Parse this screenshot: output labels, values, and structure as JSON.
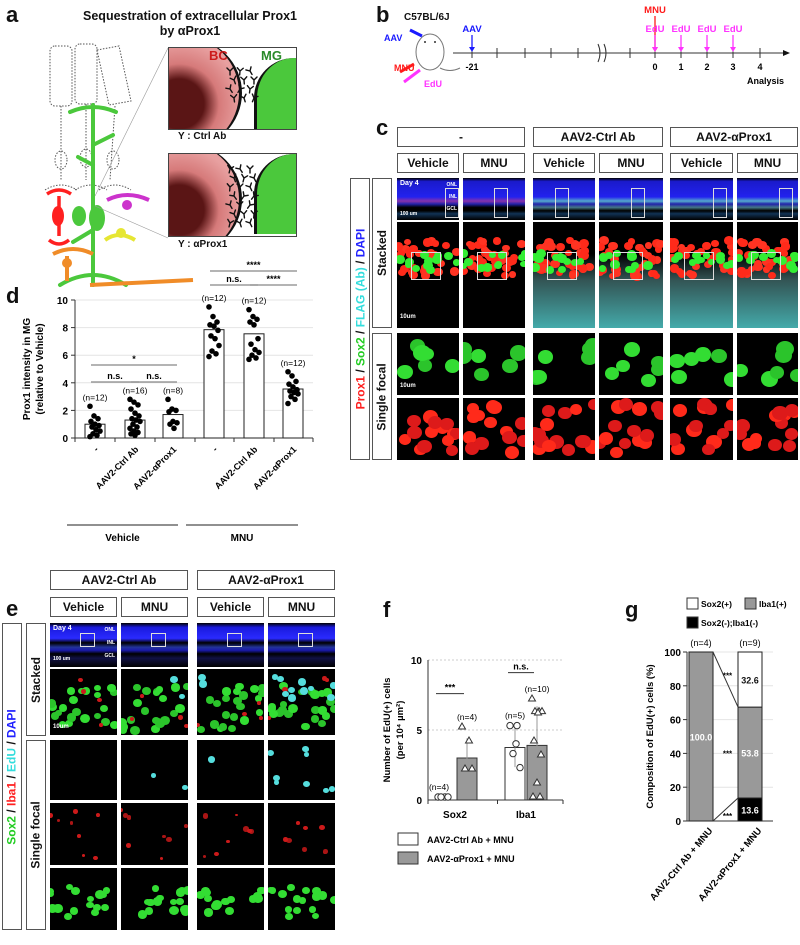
{
  "panel_a": {
    "label": "a",
    "title_line1": "Sequestration of extracellular Prox1",
    "title_line2": "by αProx1",
    "inset_labels": {
      "bc": "BC",
      "mg": "MG"
    },
    "ctrl_caption": "Y : Ctrl Ab",
    "aprox_caption": "Y : αProx1"
  },
  "panel_b": {
    "label": "b",
    "strain": "C57BL/6J",
    "injections": {
      "aav": "AAV",
      "mnu": "MNU",
      "edu": "EdU"
    },
    "timeline_ticks": [
      "-21",
      "0",
      "1",
      "2",
      "3",
      "4"
    ],
    "events": [
      {
        "label": "AAV",
        "day": "-21",
        "color": "#1a1aff"
      },
      {
        "label": "MNU",
        "day": "0",
        "color": "#ff1a1a"
      },
      {
        "label": "EdU",
        "day": "0",
        "color": "#ff33ff"
      },
      {
        "label": "EdU",
        "day": "1",
        "color": "#ff33ff"
      },
      {
        "label": "EdU",
        "day": "2",
        "color": "#ff33ff"
      },
      {
        "label": "EdU",
        "day": "3",
        "color": "#ff33ff"
      }
    ],
    "analysis_label": "Analysis"
  },
  "panel_c": {
    "label": "c",
    "groups": [
      "-",
      "AAV2-Ctrl Ab",
      "AAV2-αProx1"
    ],
    "conditions": [
      "Vehicle",
      "MNU"
    ],
    "rows": [
      "Stacked",
      "Single focal"
    ],
    "stain": [
      {
        "text": "Prox1",
        "color": "#ff2020"
      },
      {
        "text": " / ",
        "color": "#111111"
      },
      {
        "text": "Sox2",
        "color": "#22cc22"
      },
      {
        "text": " / ",
        "color": "#111111"
      },
      {
        "text": "FLAG (Ab)",
        "color": "#33dddd"
      },
      {
        "text": " / ",
        "color": "#111111"
      },
      {
        "text": "DAPI",
        "color": "#2222ff"
      }
    ],
    "day_label": "Day 4",
    "scale_100": "100 um",
    "scale_10": "10um",
    "layers": [
      "ONL",
      "INL",
      "GCL"
    ]
  },
  "panel_d": {
    "label": "d"
  },
  "panel_e": {
    "label": "e",
    "groups": [
      "AAV2-Ctrl Ab",
      "AAV2-αProx1"
    ],
    "conditions": [
      "Vehicle",
      "MNU"
    ],
    "rows": [
      "Stacked",
      "Single focal"
    ],
    "stain": [
      {
        "text": "Sox2",
        "color": "#22cc22"
      },
      {
        "text": " / ",
        "color": "#111111"
      },
      {
        "text": "Iba1",
        "color": "#ff2020"
      },
      {
        "text": " / ",
        "color": "#111111"
      },
      {
        "text": "EdU",
        "color": "#33dddd"
      },
      {
        "text": " / ",
        "color": "#111111"
      },
      {
        "text": "DAPI",
        "color": "#2222ff"
      }
    ],
    "day_label": "Day 4",
    "scale_100": "100 um",
    "scale_10": "10um",
    "layers": [
      "ONL",
      "INL",
      "GCL"
    ]
  },
  "panel_f": {
    "label": "f"
  },
  "panel_g": {
    "label": "g"
  },
  "chart_data": [
    {
      "id": "d",
      "type": "bar",
      "ylabel": "Prox1 intensity in MG (relative to Vehicle)",
      "ylim": [
        0,
        10
      ],
      "yticks": [
        "0",
        "2",
        "4",
        "6",
        "8",
        "10"
      ],
      "categories": [
        "-",
        "AAV2-Ctrl Ab",
        "AAV2-αProx1",
        "-",
        "AAV2-Ctrl Ab",
        "AAV2-αProx1"
      ],
      "groups": [
        {
          "name": "Vehicle",
          "range": [
            0,
            2
          ]
        },
        {
          "name": "MNU",
          "range": [
            3,
            5
          ]
        }
      ],
      "values": [
        1.0,
        1.3,
        1.7,
        7.85,
        7.55,
        3.55
      ],
      "n_labels": [
        "(n=12)",
        "(n=16)",
        "(n=8)",
        "(n=12)",
        "(n=12)",
        "(n=12)"
      ],
      "points": [
        [
          2.3,
          1.6,
          1.4,
          1.2,
          1.0,
          0.9,
          0.8,
          0.6,
          0.5,
          0.3,
          0.2,
          0.1
        ],
        [
          2.8,
          2.6,
          2.4,
          2.1,
          1.8,
          1.6,
          1.4,
          1.3,
          1.2,
          1.0,
          0.8,
          0.7,
          0.5,
          0.4,
          0.3,
          0.2
        ],
        [
          2.8,
          2.1,
          2.0,
          1.9,
          1.2,
          1.1,
          1.0,
          0.7
        ],
        [
          9.5,
          8.8,
          8.4,
          8.2,
          8.1,
          7.8,
          7.4,
          7.2,
          6.7,
          6.3,
          6.1,
          5.9
        ],
        [
          9.3,
          8.8,
          8.6,
          8.4,
          8.2,
          7.2,
          6.8,
          6.4,
          6.2,
          6.0,
          5.8,
          5.7
        ],
        [
          4.8,
          4.5,
          4.1,
          3.9,
          3.7,
          3.5,
          3.4,
          3.3,
          3.2,
          3.0,
          2.8,
          2.5
        ]
      ],
      "significance": [
        {
          "from": 0,
          "to": 1,
          "label": "n.s."
        },
        {
          "from": 1,
          "to": 2,
          "label": "n.s."
        },
        {
          "from": 0,
          "to": 2,
          "label": "*"
        },
        {
          "from": 3,
          "to": 4,
          "label": "n.s."
        },
        {
          "from": 4,
          "to": 5,
          "label": "****"
        },
        {
          "from": 3,
          "to": 5,
          "label": "****"
        }
      ]
    },
    {
      "id": "f",
      "type": "bar",
      "ylabel": "Number of EdU(+) cells (per 10⁴ µm²)",
      "ylim": [
        0,
        10
      ],
      "yticks": [
        "0",
        "5",
        "10"
      ],
      "categories": [
        "Sox2",
        "Iba1"
      ],
      "series": [
        {
          "name": "AAV2-Ctrl Ab + MNU",
          "color": "#ffffff",
          "marker": "circle",
          "values": [
            0.0,
            3.75
          ],
          "sd": [
            0.0,
            1.4
          ],
          "n_labels": [
            "(n=4)",
            "(n=5)"
          ],
          "points": [
            [
              0,
              0,
              0,
              0
            ],
            [
              5.1,
              5.1,
              3.1,
              2.1,
              3.8
            ]
          ]
        },
        {
          "name": "AAV2-αProx1 + MNU",
          "color": "#999999",
          "marker": "triangle",
          "values": [
            3.0,
            3.9
          ],
          "sd": [
            1.4,
            2.8
          ],
          "n_labels": [
            "(n=4)",
            "(n=10)"
          ],
          "points": [
            [
              5.0,
              4.0,
              2.0,
              2.0
            ],
            [
              7.0,
              6.1,
              6.1,
              6.1,
              6.0,
              4.0,
              3.0,
              1.0,
              0.0,
              0.0
            ]
          ]
        }
      ],
      "significance": [
        {
          "category": "Sox2",
          "label": "***"
        },
        {
          "category": "Iba1",
          "label": "n.s."
        }
      ]
    },
    {
      "id": "g",
      "type": "bar",
      "stacked": true,
      "ylabel": "Composition of EdU(+) cells (%)",
      "ylim": [
        0,
        100
      ],
      "yticks": [
        "0",
        "20",
        "40",
        "60",
        "80",
        "100"
      ],
      "categories": [
        "AAV2-Ctrl Ab + MNU",
        "AAV2-αProx1 + MNU"
      ],
      "n_labels": [
        "(n=4)",
        "(n=9)"
      ],
      "series": [
        {
          "name": "Sox2(-);Iba1(-)",
          "color": "#000000",
          "values": [
            0,
            13.6
          ],
          "labels": [
            "",
            "13.6"
          ]
        },
        {
          "name": "Iba1(+)",
          "color": "#999999",
          "values": [
            100.0,
            53.8
          ],
          "labels": [
            "100.0",
            "53.8"
          ]
        },
        {
          "name": "Sox2(+)",
          "color": "#ffffff",
          "values": [
            0,
            32.6
          ],
          "labels": [
            "",
            "32.6"
          ]
        }
      ],
      "legend_order": [
        "Sox2(+)",
        "Iba1(+)",
        "Sox2(-);Iba1(-)"
      ],
      "significance": [
        "***",
        "***",
        "***"
      ]
    }
  ]
}
